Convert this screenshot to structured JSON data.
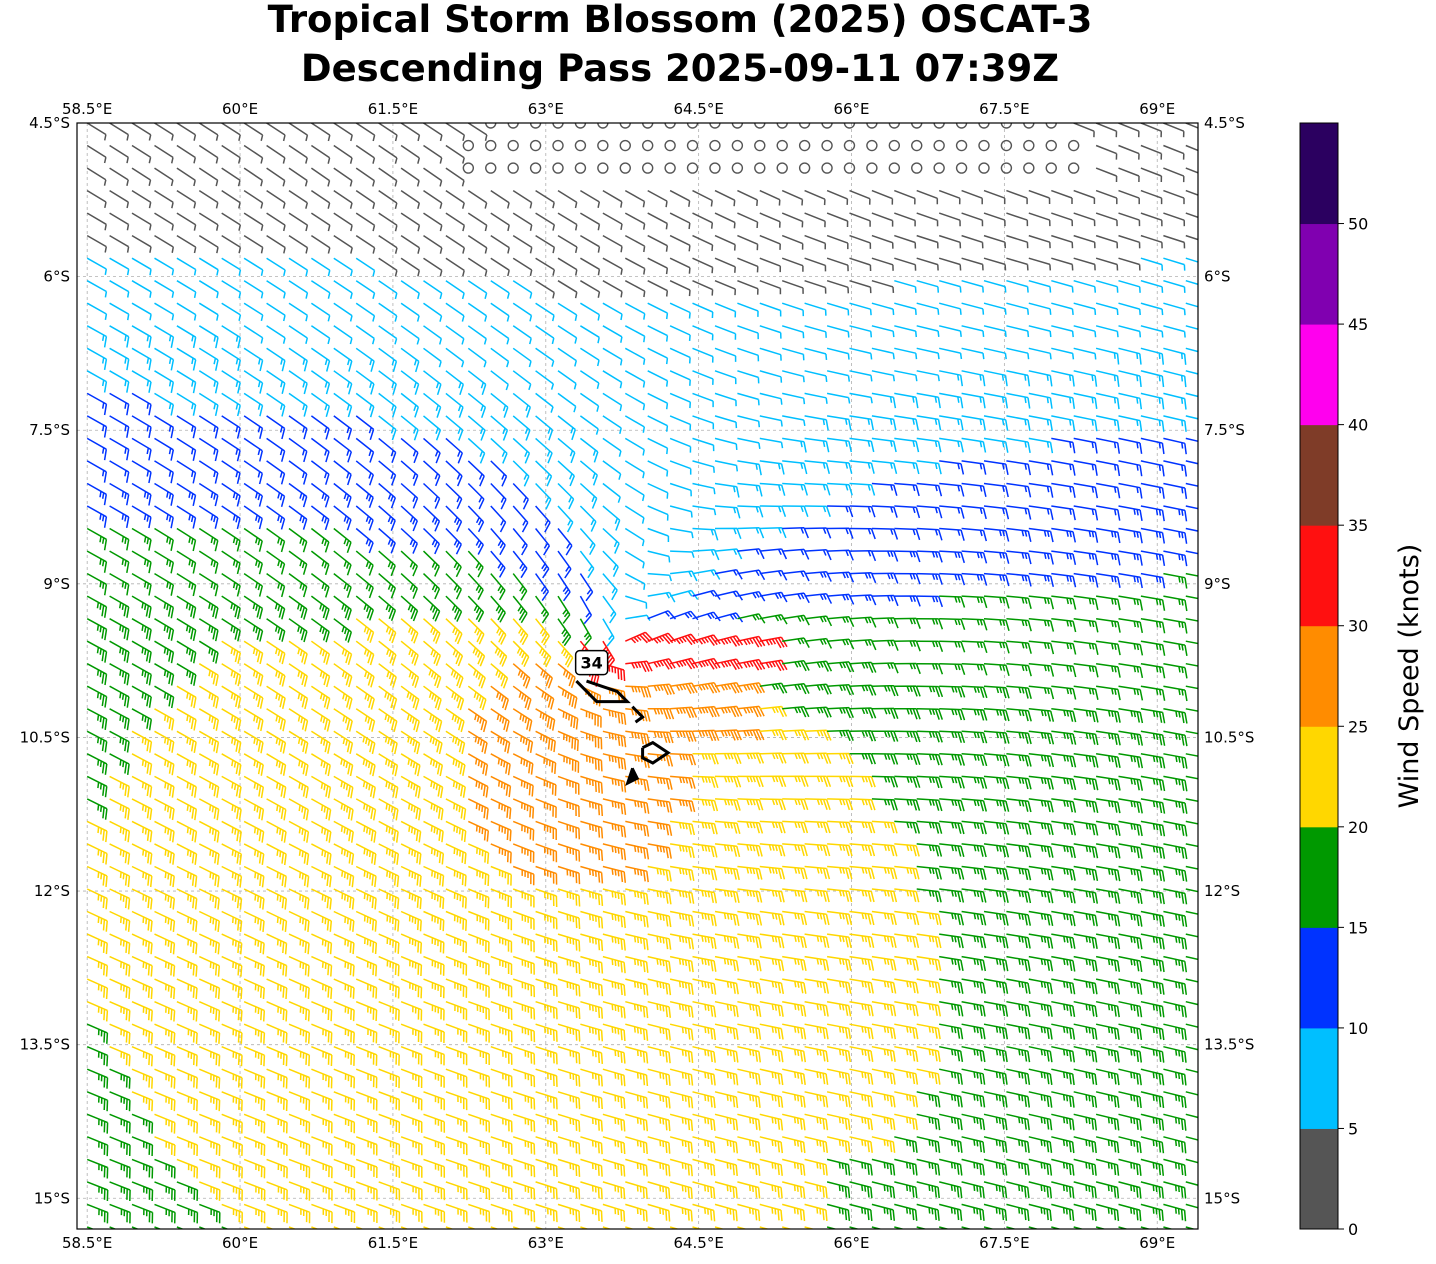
{
  "title_line1": "Tropical Storm Blossom (2025) OSCAT-3",
  "title_line2": "Descending Pass 2025-09-11 07:39Z",
  "map": {
    "lon_range": [
      58.4,
      69.4
    ],
    "lat_range": [
      -15.3,
      -4.5
    ],
    "lon_ticks": [
      "58.5°E",
      "60°E",
      "61.5°E",
      "63°E",
      "64.5°E",
      "66°E",
      "67.5°E",
      "69°E"
    ],
    "lat_ticks": [
      "4.5°S",
      "6°S",
      "7.5°S",
      "9°S",
      "10.5°S",
      "12°S",
      "13.5°S",
      "15°S"
    ],
    "gridlines": true,
    "storm_center": [
      63.6,
      -9.6
    ],
    "contour_label": "34"
  },
  "colorbar": {
    "label": "Wind Speed (knots)",
    "bins": [
      0,
      5,
      10,
      15,
      20,
      25,
      30,
      35,
      40,
      45,
      50
    ],
    "tick_labels": [
      "0",
      "5",
      "10",
      "15",
      "20",
      "25",
      "30",
      "35",
      "40",
      "45",
      "50"
    ],
    "colors": [
      "#555555",
      "#00bfff",
      "#0033ff",
      "#009900",
      "#ffd700",
      "#ff8c00",
      "#ff1010",
      "#7f3c28",
      "#ff00ee",
      "#8000b0",
      "#2b0060"
    ]
  }
}
